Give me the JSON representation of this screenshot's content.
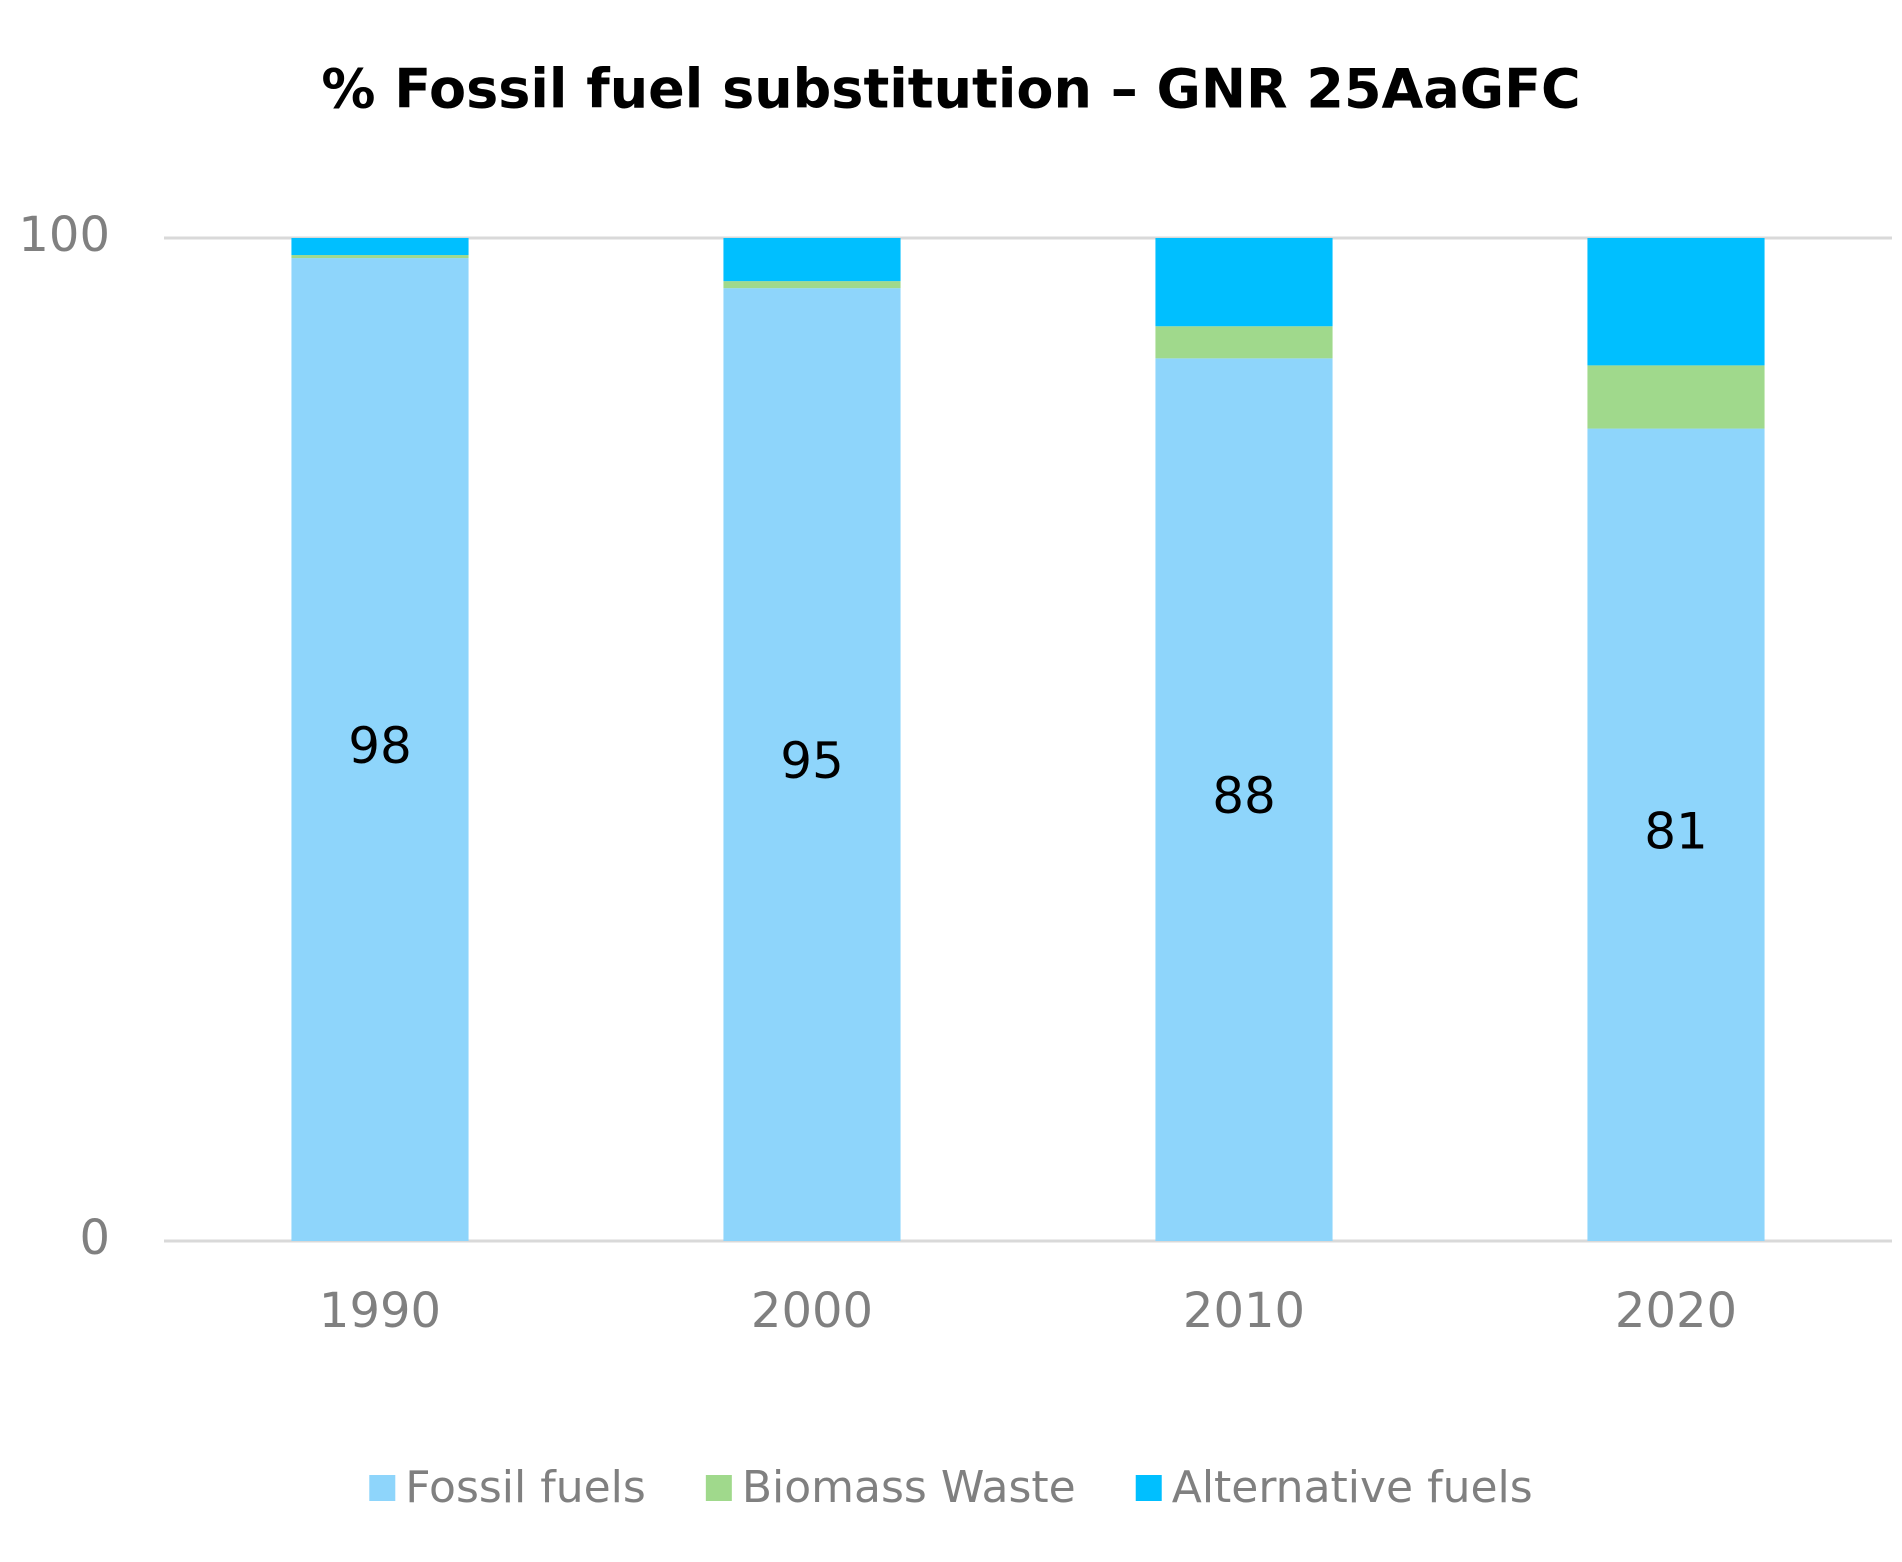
{
  "chart_data": {
    "type": "stacked_bar",
    "title": "% Fossil fuel substitution – GNR 25AaGFC",
    "categories": [
      "1990",
      "2000",
      "2010",
      "2020"
    ],
    "series": [
      {
        "name": "Fossil fuels",
        "color": "#8ed5fb",
        "values": [
          98,
          95,
          88,
          81
        ],
        "data_labels": true
      },
      {
        "name": "Biomass Waste",
        "color": "#a0d98c",
        "values": [
          0.3,
          0.7,
          3.2,
          6.3
        ]
      },
      {
        "name": "Alternative fuels",
        "color": "#00bfff",
        "values": [
          1.7,
          4.3,
          8.8,
          12.7
        ]
      }
    ],
    "ylim": [
      0,
      100
    ],
    "yticks": [
      0,
      100
    ],
    "grid": true,
    "legend": "bottom"
  }
}
